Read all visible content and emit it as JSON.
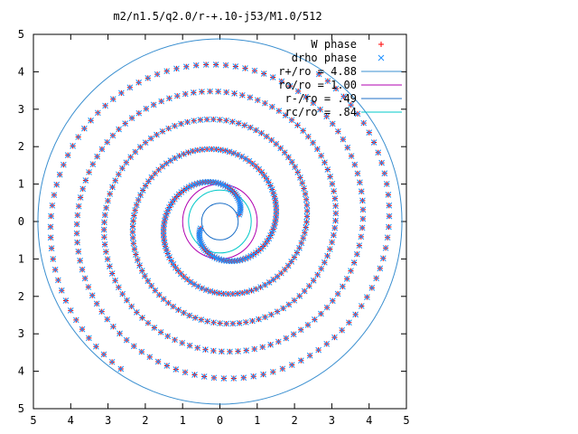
{
  "chart_data": {
    "type": "scatter",
    "title": "m2/n1.5/q2.0/r-+.10-j53/M1.0/512",
    "xlabel": "",
    "ylabel": "",
    "xlim": [
      -5,
      5
    ],
    "ylim": [
      -5,
      5
    ],
    "x_tick_labels": [
      "5",
      "4",
      "3",
      "2",
      "1",
      "0",
      "1",
      "2",
      "3",
      "4",
      "5"
    ],
    "y_tick_labels": [
      "5",
      "4",
      "3",
      "2",
      "1",
      "0",
      "1",
      "2",
      "3",
      "4",
      "5"
    ],
    "grid": false,
    "legend_position": "top-right",
    "series": [
      {
        "name": "W phase",
        "marker": "plus",
        "color": "#ff0000",
        "spiral": {
          "arms": 2,
          "r_min": 0.55,
          "r_max": 4.75,
          "pitch_turns": 2.6,
          "points_per_arm": 260,
          "phase0_deg": 20
        }
      },
      {
        "name": "drho phase",
        "marker": "cross",
        "color": "#1e90ff",
        "spiral": {
          "arms": 2,
          "r_min": 0.55,
          "r_max": 4.75,
          "pitch_turns": 2.6,
          "points_per_arm": 260,
          "phase0_deg": 20
        }
      },
      {
        "name": "r+/ro = 4.88",
        "type": "circle",
        "radius": 4.88,
        "color": "#3a8fd0"
      },
      {
        "name": "ro/ro = 1.00",
        "type": "circle",
        "radius": 1.0,
        "color": "#b000b0"
      },
      {
        "name": "r-/ro = .49",
        "type": "circle",
        "radius": 0.49,
        "color": "#1c6fc7"
      },
      {
        "name": "rc/ro = .84",
        "type": "circle",
        "radius": 0.84,
        "color": "#00c8c8"
      }
    ]
  }
}
